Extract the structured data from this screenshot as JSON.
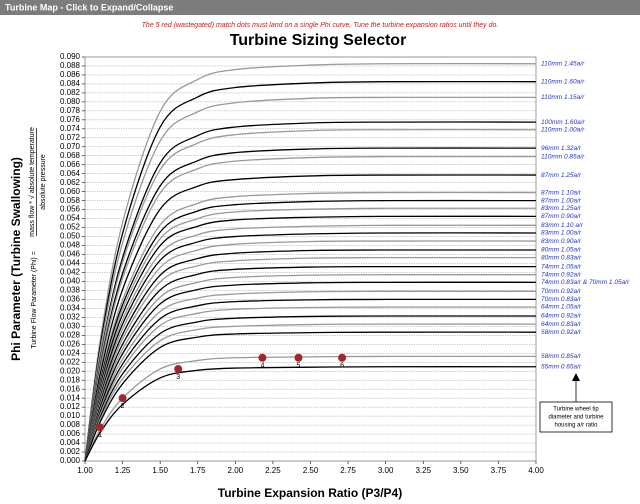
{
  "header": {
    "title": "Turbine Map - Click to Expand/Collapse"
  },
  "chart_data": {
    "type": "line",
    "note": "The 5 red (wastegated) match dots must land on a single Phi curve.  Tune the turbine expansion ratios until they do.",
    "title": "Turbine Sizing Selector",
    "xlabel": "Turbine Expansion Ratio (P3/P4)",
    "ylabel": "Phi Parameter (Turbine Swallowing)",
    "ylabel2": {
      "prefix": "Turbine Flow Parameter (Phi) =",
      "numerator": "mass flow * √ absolute temperature",
      "denominator": "absolute pressure"
    },
    "x": [
      1.0,
      1.1,
      1.25,
      1.5,
      1.75,
      2.0,
      2.5,
      3.0,
      4.0
    ],
    "series": [
      {
        "name": "110mm 1.45a/r",
        "color": "#999999",
        "values": [
          0,
          0.0266,
          0.0531,
          0.0779,
          0.085,
          0.0872,
          0.0882,
          0.0885,
          0.0885
        ]
      },
      {
        "name": "110mm 1.60a/r",
        "color": "#000000",
        "values": [
          0,
          0.0254,
          0.0507,
          0.0744,
          0.0811,
          0.0832,
          0.0842,
          0.0845,
          0.0845
        ]
      },
      {
        "name": "110mm 1.15a/r",
        "color": "#999999",
        "values": [
          0,
          0.0243,
          0.0486,
          0.0713,
          0.0778,
          0.0798,
          0.0808,
          0.081,
          0.081
        ]
      },
      {
        "name": "100mm 1.60a/r",
        "color": "#000000",
        "values": [
          0,
          0.0227,
          0.0453,
          0.0664,
          0.0725,
          0.0744,
          0.0753,
          0.0755,
          0.0755
        ]
      },
      {
        "name": "110mm 1.00a/r",
        "color": "#999999",
        "values": [
          0,
          0.0221,
          0.0443,
          0.0649,
          0.0708,
          0.0727,
          0.0736,
          0.0738,
          0.0738
        ]
      },
      {
        "name": "96mm 1.32a/r",
        "color": "#000000",
        "values": [
          0,
          0.0209,
          0.0418,
          0.0613,
          0.0669,
          0.0687,
          0.0695,
          0.0697,
          0.0697
        ]
      },
      {
        "name": "110mm 0.85a/r",
        "color": "#999999",
        "values": [
          0,
          0.0203,
          0.0407,
          0.0597,
          0.0651,
          0.0668,
          0.0676,
          0.0678,
          0.0678
        ]
      },
      {
        "name": "87mm 1.25a/r",
        "color": "#000000",
        "values": [
          0,
          0.0191,
          0.0382,
          0.0561,
          0.0612,
          0.0627,
          0.0635,
          0.0637,
          0.0637
        ]
      },
      {
        "name": "87mm 1.10a/r",
        "color": "#999999",
        "values": [
          0,
          0.0179,
          0.0359,
          0.0526,
          0.0574,
          0.0589,
          0.0596,
          0.0598,
          0.0598
        ]
      },
      {
        "name": "87mm 1.00a/r",
        "color": "#000000",
        "values": [
          0,
          0.0174,
          0.0348,
          0.051,
          0.0557,
          0.0571,
          0.0578,
          0.058,
          0.058
        ]
      },
      {
        "name": "83mm 1.25a/r",
        "color": "#999999",
        "values": [
          0,
          0.0169,
          0.0338,
          0.0495,
          0.054,
          0.0555,
          0.0561,
          0.0563,
          0.0563
        ]
      },
      {
        "name": "87mm 0.90a/r",
        "color": "#000000",
        "values": [
          0,
          0.0164,
          0.0327,
          0.048,
          0.0523,
          0.0537,
          0.0543,
          0.0545,
          0.0545
        ]
      },
      {
        "name": "83mm 1.10 a/r",
        "color": "#999999",
        "values": [
          0,
          0.0158,
          0.0315,
          0.0462,
          0.0504,
          0.0517,
          0.0523,
          0.0525,
          0.0525
        ]
      },
      {
        "name": "83mm 1.00a/r",
        "color": "#000000",
        "values": [
          0,
          0.0152,
          0.0305,
          0.0447,
          0.0488,
          0.05,
          0.0506,
          0.0508,
          0.0508
        ]
      },
      {
        "name": "83mm 0.90a/r",
        "color": "#999999",
        "values": [
          0,
          0.0147,
          0.0294,
          0.0431,
          0.047,
          0.0483,
          0.0489,
          0.049,
          0.049
        ]
      },
      {
        "name": "80mm 1.05a/r",
        "color": "#000000",
        "values": [
          0,
          0.0141,
          0.0282,
          0.0414,
          0.0451,
          0.0463,
          0.0469,
          0.047,
          0.047
        ]
      },
      {
        "name": "80mm 0.83a/r",
        "color": "#999999",
        "values": [
          0,
          0.0136,
          0.0272,
          0.0399,
          0.0435,
          0.0446,
          0.0452,
          0.0453,
          0.0453
        ]
      },
      {
        "name": "74mm 1.05a/r",
        "color": "#000000",
        "values": [
          0,
          0.013,
          0.026,
          0.0381,
          0.0416,
          0.0427,
          0.0432,
          0.0433,
          0.0433
        ]
      },
      {
        "name": "74mm 0.92a/r",
        "color": "#999999",
        "values": [
          0,
          0.0125,
          0.0249,
          0.0365,
          0.0398,
          0.0409,
          0.0414,
          0.0415,
          0.0415
        ]
      },
      {
        "name": "74mm 0.83a/r  & 70mm 1.05a/r",
        "color": "#000000",
        "values": [
          0,
          0.0119,
          0.0239,
          0.035,
          0.0382,
          0.0392,
          0.0397,
          0.0398,
          0.0398
        ]
      },
      {
        "name": "70mm 0.92a/r",
        "color": "#999999",
        "values": [
          0,
          0.0113,
          0.0227,
          0.0333,
          0.0363,
          0.0372,
          0.0377,
          0.0378,
          0.0378
        ]
      },
      {
        "name": "70mm 0.83a/r",
        "color": "#000000",
        "values": [
          0,
          0.0108,
          0.0216,
          0.0317,
          0.0346,
          0.0355,
          0.0359,
          0.036,
          0.036
        ]
      },
      {
        "name": "64mm 1.05a/r",
        "color": "#999999",
        "values": [
          0,
          0.0103,
          0.0206,
          0.0302,
          0.0329,
          0.0338,
          0.0342,
          0.0343,
          0.0343
        ]
      },
      {
        "name": "64mm 0.92a/r",
        "color": "#000000",
        "values": [
          0,
          0.0097,
          0.0194,
          0.0284,
          0.031,
          0.0318,
          0.0322,
          0.0323,
          0.0323
        ]
      },
      {
        "name": "64mm 0.83a/r",
        "color": "#999999",
        "values": [
          0,
          0.0092,
          0.0183,
          0.0268,
          0.0293,
          0.03,
          0.0304,
          0.0305,
          0.0305
        ]
      },
      {
        "name": "58mm 0.92a/r",
        "color": "#000000",
        "values": [
          0,
          0.0086,
          0.0172,
          0.0253,
          0.0276,
          0.0283,
          0.0286,
          0.0287,
          0.0287
        ]
      },
      {
        "name": "58mm 0.85a/r",
        "color": "#999999",
        "values": [
          0,
          0.007,
          0.014,
          0.0205,
          0.0224,
          0.023,
          0.0232,
          0.0233,
          0.0233
        ]
      },
      {
        "name": "55mm 0.65a/r",
        "color": "#000000",
        "values": [
          0,
          0.0063,
          0.0126,
          0.0185,
          0.0202,
          0.0207,
          0.0209,
          0.021,
          0.021
        ]
      }
    ],
    "match_points": {
      "color": "#a3262b",
      "x": [
        1.1,
        1.25,
        1.62,
        2.18,
        2.42,
        2.71
      ],
      "y": [
        0.0075,
        0.014,
        0.0205,
        0.023,
        0.023,
        0.023
      ],
      "labels": [
        "1",
        "2",
        "3",
        "4",
        "5",
        "6"
      ]
    },
    "annotation": [
      "Turbine wheel tip",
      "diameter and turbine",
      "housing a/r ratio"
    ],
    "xlim": [
      1,
      4
    ],
    "ylim": [
      0,
      0.09
    ],
    "xticks": [
      {
        "value": 1,
        "label": "1.00"
      },
      1.25,
      {
        "value": 1.5,
        "label": "1.50"
      },
      1.75,
      {
        "value": 2,
        "label": "2.00"
      },
      2.25,
      {
        "value": 2.5,
        "label": "2.50"
      },
      2.75,
      {
        "value": 3,
        "label": "3.00"
      },
      3.25,
      {
        "value": 3.5,
        "label": "3.50"
      },
      3.75,
      {
        "value": 4,
        "label": "4.00"
      }
    ],
    "yticks": [
      {
        "value": 0,
        "label": "0.000"
      },
      0.002,
      0.004,
      0.006,
      0.008,
      {
        "value": 0.01,
        "label": "0.010"
      },
      0.012,
      0.014,
      0.016,
      0.018,
      {
        "value": 0.02,
        "label": "0.020"
      },
      0.022,
      0.024,
      0.026,
      0.028,
      {
        "value": 0.03,
        "label": "0.030"
      },
      0.032,
      0.034,
      0.036,
      0.038,
      {
        "value": 0.04,
        "label": "0.040"
      },
      0.042,
      0.044,
      0.046,
      0.048,
      {
        "value": 0.05,
        "label": "0.050"
      },
      0.052,
      0.054,
      0.056,
      0.058,
      {
        "value": 0.06,
        "label": "0.060"
      },
      0.062,
      0.064,
      0.066,
      0.068,
      {
        "value": 0.07,
        "label": "0.070"
      },
      0.072,
      0.074,
      0.076,
      0.078,
      {
        "value": 0.08,
        "label": "0.080"
      },
      0.082,
      0.084,
      0.086,
      0.088,
      {
        "value": 0.09,
        "label": "0.090"
      }
    ],
    "grid": true
  }
}
